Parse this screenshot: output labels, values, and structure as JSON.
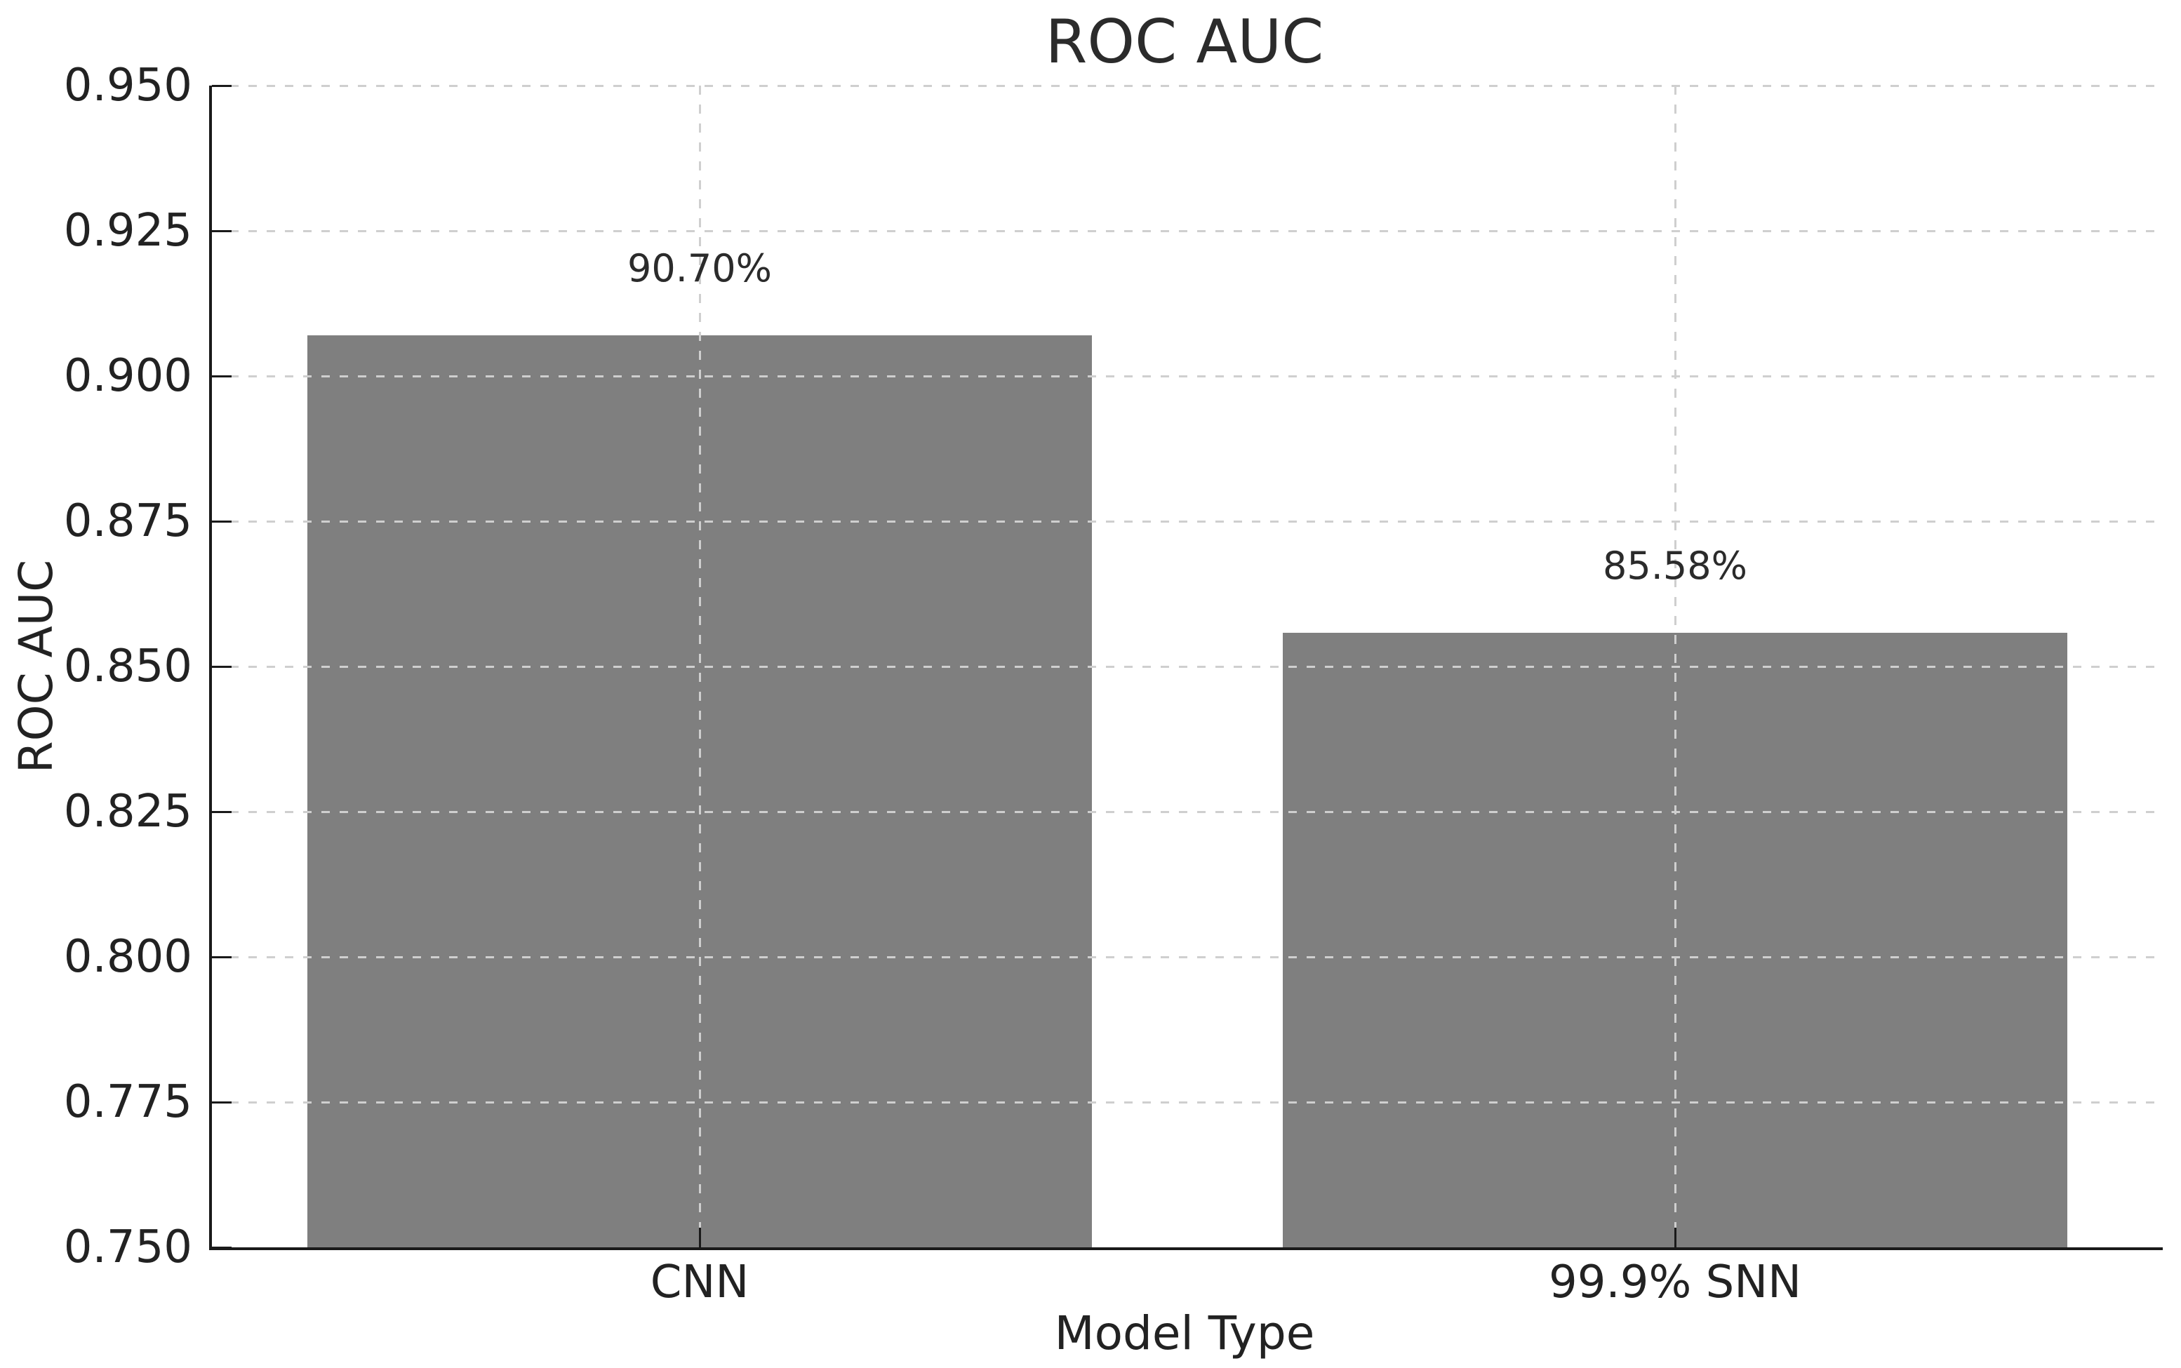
{
  "chart_data": {
    "type": "bar",
    "title": "ROC AUC",
    "xlabel": "Model Type",
    "ylabel": "ROC AUC",
    "categories": [
      "CNN",
      "99.9% SNN"
    ],
    "values": [
      0.907,
      0.8558
    ],
    "bar_labels": [
      "90.70%",
      "85.58%"
    ],
    "ylim": [
      0.75,
      0.95
    ],
    "yticks": [
      0.75,
      0.775,
      0.8,
      0.825,
      0.85,
      0.875,
      0.9,
      0.925,
      0.95
    ],
    "ytick_labels": [
      "0.750",
      "0.775",
      "0.800",
      "0.825",
      "0.850",
      "0.875",
      "0.900",
      "0.925",
      "0.950"
    ],
    "x_positions": [
      0.25,
      0.75
    ],
    "bar_width_frac": 0.402,
    "grid": "dashed, horizontal and vertical, drawn above bars",
    "legend_position": "none",
    "colors": {
      "bar": "#7f7f7f",
      "grid": "#cfcfcf",
      "axis": "#1a1a1a",
      "text": "#222222",
      "background": "#ffffff"
    }
  }
}
